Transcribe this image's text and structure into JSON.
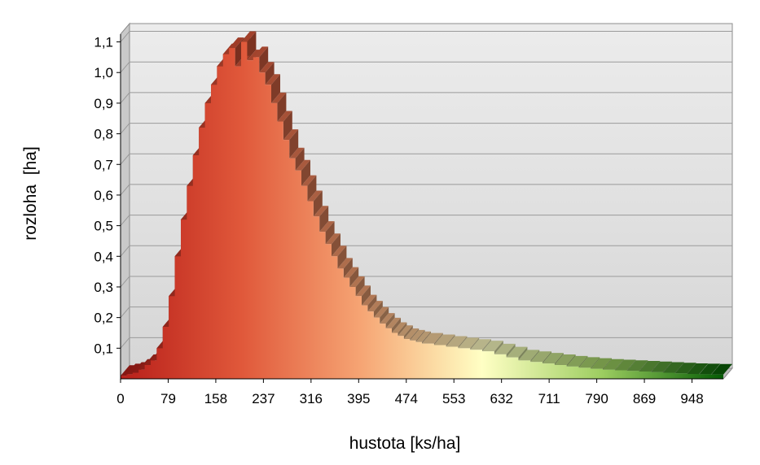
{
  "chart_data": {
    "type": "area",
    "title": "",
    "xlabel": "hustota [ks/ha]",
    "ylabel": "rozloha  [ha]",
    "xlim": [
      0,
      1000
    ],
    "ylim": [
      0,
      1.1
    ],
    "x_ticks": [
      0,
      79,
      158,
      237,
      316,
      395,
      474,
      553,
      632,
      711,
      790,
      869,
      948
    ],
    "x_tick_labels": [
      "0",
      "79",
      "158",
      "237",
      "316",
      "395",
      "474",
      "553",
      "632",
      "711",
      "790",
      "869",
      "948"
    ],
    "y_ticks": [
      0.1,
      0.2,
      0.3,
      0.4,
      0.5,
      0.6,
      0.7,
      0.8,
      0.9,
      1.0,
      1.1
    ],
    "y_tick_labels": [
      "0,1",
      "0,2",
      "0,3",
      "0,4",
      "0,5",
      "0,6",
      "0,7",
      "0,8",
      "0,9",
      "1,0",
      "1,1"
    ],
    "grid": true,
    "legend": "none",
    "view": "3d",
    "fill_gradient": [
      "#b81f1a",
      "#e0583a",
      "#f6a574",
      "#ffffc4",
      "#9ccd60",
      "#045c04"
    ],
    "series": [
      {
        "x": [
          0,
          10,
          20,
          30,
          40,
          50,
          60,
          70,
          80,
          90,
          100,
          110,
          120,
          130,
          140,
          150,
          160,
          170,
          180,
          190,
          200,
          210,
          220,
          230,
          240,
          250,
          260,
          270,
          280,
          290,
          300,
          310,
          320,
          330,
          340,
          350,
          360,
          370,
          380,
          390,
          400,
          410,
          420,
          430,
          440,
          450,
          460,
          470,
          480,
          490,
          500,
          520,
          540,
          560,
          580,
          600,
          620,
          640,
          660,
          680,
          700,
          720,
          740,
          760,
          780,
          800,
          820,
          840,
          860,
          880,
          900,
          920,
          940,
          960,
          980,
          1000
        ],
        "values": [
          0.01,
          0.015,
          0.02,
          0.03,
          0.045,
          0.06,
          0.1,
          0.17,
          0.27,
          0.4,
          0.52,
          0.63,
          0.73,
          0.82,
          0.9,
          0.96,
          1.02,
          1.06,
          1.08,
          1.02,
          1.1,
          1.04,
          1.05,
          1.0,
          0.96,
          0.9,
          0.84,
          0.78,
          0.72,
          0.68,
          0.63,
          0.58,
          0.53,
          0.48,
          0.44,
          0.4,
          0.36,
          0.33,
          0.3,
          0.27,
          0.24,
          0.22,
          0.2,
          0.18,
          0.165,
          0.15,
          0.14,
          0.13,
          0.125,
          0.12,
          0.115,
          0.11,
          0.105,
          0.1,
          0.095,
          0.09,
          0.08,
          0.07,
          0.06,
          0.055,
          0.05,
          0.045,
          0.04,
          0.036,
          0.033,
          0.03,
          0.028,
          0.026,
          0.024,
          0.022,
          0.02,
          0.018,
          0.016,
          0.015,
          0.014,
          0.013
        ]
      }
    ]
  }
}
